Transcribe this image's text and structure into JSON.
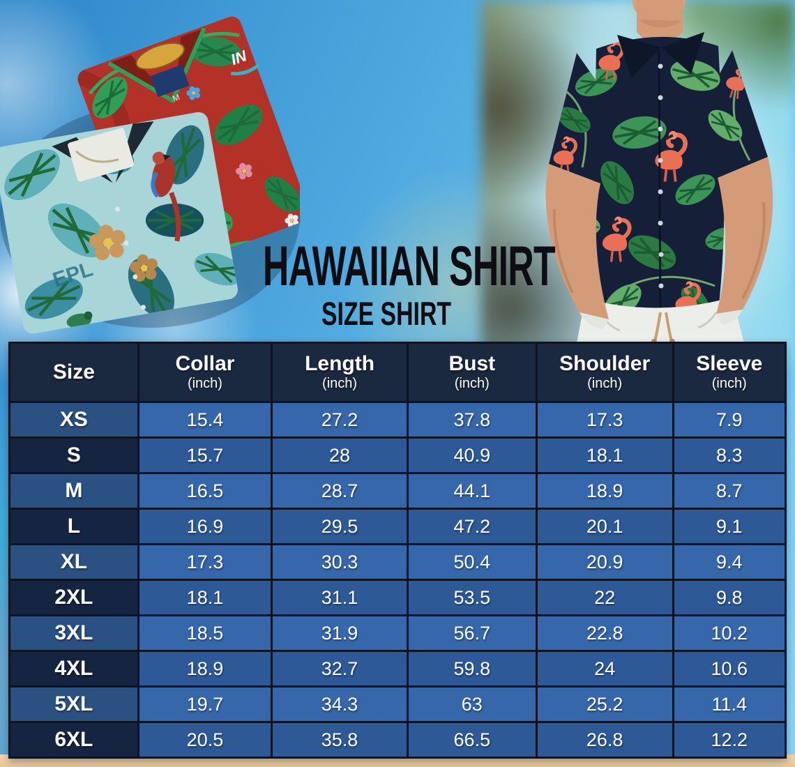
{
  "page": {
    "title_line1": "HAWAIIAN SHIRT",
    "title_line2": "SIZE SHIRT"
  },
  "photos": {
    "left": {
      "name": "folded-hawaiian-shirts-photo",
      "shirts": [
        "red-tropical-leaf-shirt",
        "teal-hibiscus-parrot-shirt"
      ],
      "size_tag": "M",
      "logo_text": "IN",
      "print_text": "EPL"
    },
    "right": {
      "name": "man-wearing-navy-flamingo-hawaiian-shirt-photo"
    }
  },
  "table": {
    "columns": [
      {
        "label": "Size",
        "unit": ""
      },
      {
        "label": "Collar",
        "unit": "(inch)"
      },
      {
        "label": "Length",
        "unit": "(inch)"
      },
      {
        "label": "Bust",
        "unit": "(inch)"
      },
      {
        "label": "Shoulder",
        "unit": "(inch)"
      },
      {
        "label": "Sleeve",
        "unit": "(inch)"
      }
    ],
    "rows": [
      {
        "size": "XS",
        "values": [
          "15.4",
          "27.2",
          "37.8",
          "17.3",
          "7.9"
        ]
      },
      {
        "size": "S",
        "values": [
          "15.7",
          "28",
          "40.9",
          "18.1",
          "8.3"
        ]
      },
      {
        "size": "M",
        "values": [
          "16.5",
          "28.7",
          "44.1",
          "18.9",
          "8.7"
        ]
      },
      {
        "size": "L",
        "values": [
          "16.9",
          "29.5",
          "47.2",
          "20.1",
          "9.1"
        ]
      },
      {
        "size": "XL",
        "values": [
          "17.3",
          "30.3",
          "50.4",
          "20.9",
          "9.4"
        ]
      },
      {
        "size": "2XL",
        "values": [
          "18.1",
          "31.1",
          "53.5",
          "22",
          "9.8"
        ]
      },
      {
        "size": "3XL",
        "values": [
          "18.5",
          "31.9",
          "56.7",
          "22.8",
          "10.2"
        ]
      },
      {
        "size": "4XL",
        "values": [
          "18.9",
          "32.7",
          "59.8",
          "24",
          "10.6"
        ]
      },
      {
        "size": "5XL",
        "values": [
          "19.7",
          "34.3",
          "63",
          "25.2",
          "11.4"
        ]
      },
      {
        "size": "6XL",
        "values": [
          "20.5",
          "35.8",
          "66.5",
          "26.8",
          "12.2"
        ]
      }
    ]
  },
  "colors": {
    "header_bg": "#1a2840",
    "row_light_value": "#3567aa",
    "row_light_size": "#2b5082",
    "row_dark_value": "#2d5a96",
    "row_dark_size": "#152440",
    "grid_line": "#0c1422",
    "table_text": "#ffffff",
    "title_text": "#0d0e14",
    "sky_blue": "#54aee0",
    "sand": "#ecd0a6",
    "red_shirt": "#b43127",
    "teal_shirt": "#a8d6d8",
    "navy_shirt": "#161f38",
    "flamingo": "#e96f55",
    "leaf_green": "#3f9a58"
  },
  "chart_data": {
    "type": "table",
    "title": "Hawaiian Shirt Size Shirt",
    "categories": [
      "XS",
      "S",
      "M",
      "L",
      "XL",
      "2XL",
      "3XL",
      "4XL",
      "5XL",
      "6XL"
    ],
    "series": [
      {
        "name": "Collar (inch)",
        "values": [
          15.4,
          15.7,
          16.5,
          16.9,
          17.3,
          18.1,
          18.5,
          18.9,
          19.7,
          20.5
        ]
      },
      {
        "name": "Length (inch)",
        "values": [
          27.2,
          28,
          28.7,
          29.5,
          30.3,
          31.1,
          31.9,
          32.7,
          34.3,
          35.8
        ]
      },
      {
        "name": "Bust (inch)",
        "values": [
          37.8,
          40.9,
          44.1,
          47.2,
          50.4,
          53.5,
          56.7,
          59.8,
          63,
          66.5
        ]
      },
      {
        "name": "Shoulder (inch)",
        "values": [
          17.3,
          18.1,
          18.9,
          20.1,
          20.9,
          22,
          22.8,
          24,
          25.2,
          26.8
        ]
      },
      {
        "name": "Sleeve (inch)",
        "values": [
          7.9,
          8.3,
          8.7,
          9.1,
          9.4,
          9.8,
          10.2,
          10.6,
          11.4,
          12.2
        ]
      }
    ]
  }
}
